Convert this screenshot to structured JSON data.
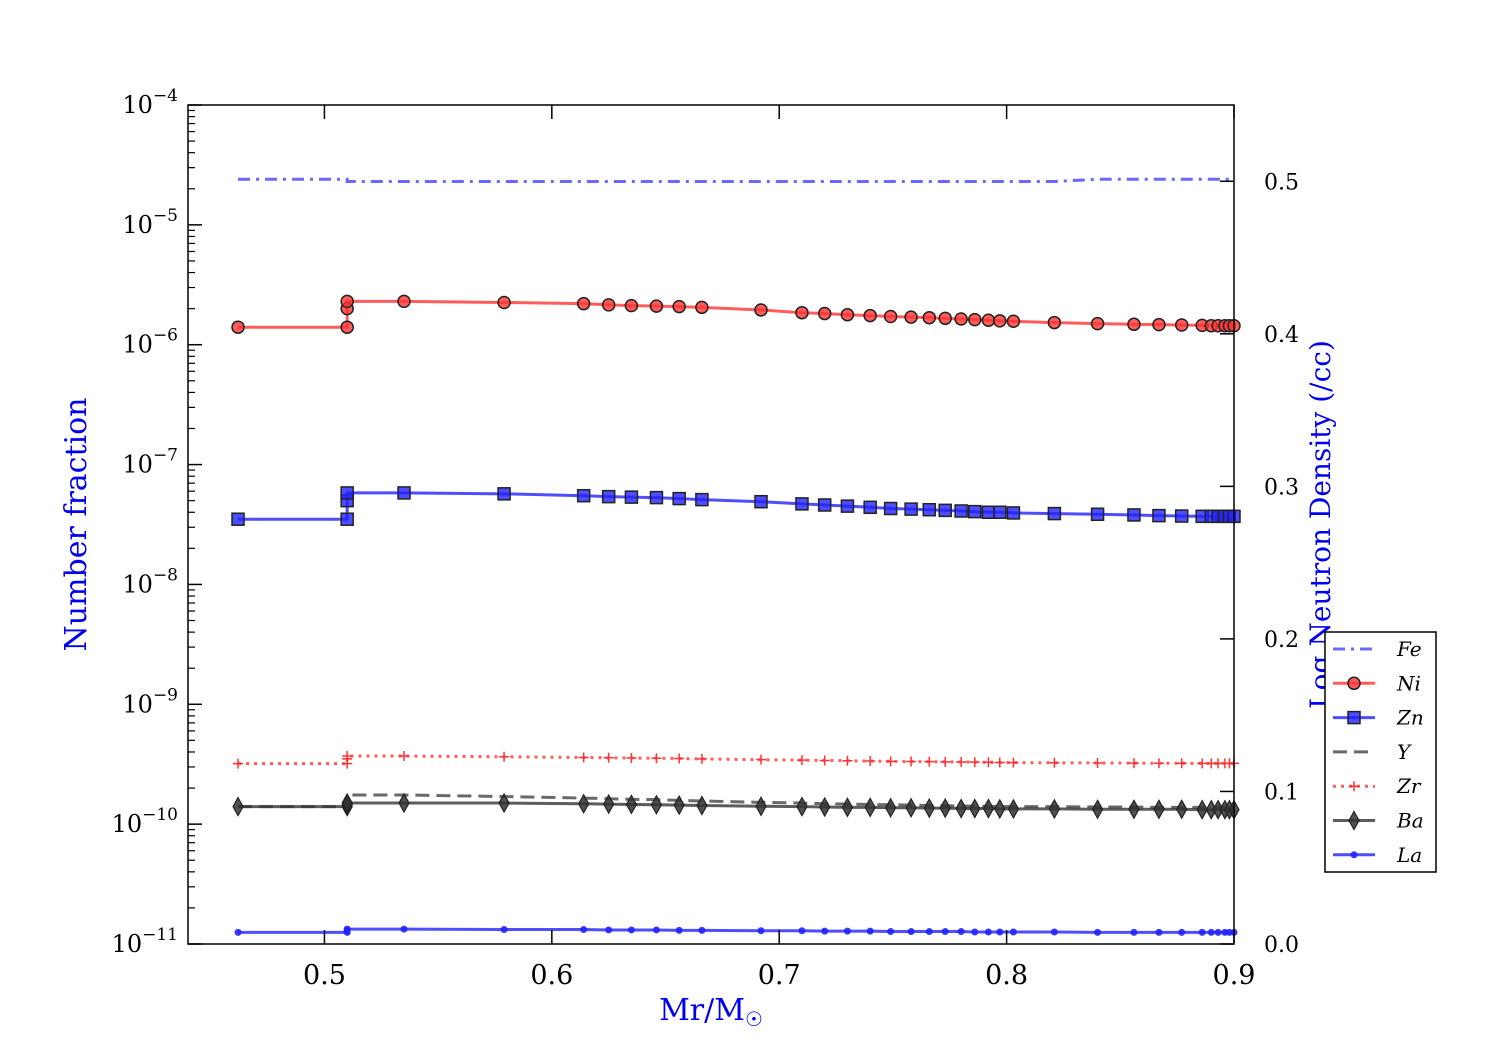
{
  "chart_data": {
    "type": "line",
    "x_axis": {
      "label": "Mr/M",
      "label_sub": "☉",
      "range": [
        0.44,
        0.9
      ],
      "ticks": [
        0.5,
        0.6,
        0.7,
        0.8,
        0.9
      ],
      "tick_labels": [
        "0.5",
        "0.6",
        "0.7",
        "0.8",
        "0.9"
      ]
    },
    "y_axis_left": {
      "label": "Number fraction",
      "scale": "log",
      "range": [
        1e-11,
        0.0001
      ],
      "tick_bases": [
        "10",
        "10",
        "10",
        "10",
        "10",
        "10",
        "10",
        "10"
      ],
      "tick_exps": [
        "−11",
        "−10",
        "−9",
        "−8",
        "−7",
        "−6",
        "−5",
        "−4"
      ]
    },
    "y_axis_right": {
      "label": "Log Neutron Density (/cc)",
      "scale": "linear",
      "range": [
        0.0,
        0.55
      ],
      "ticks": [
        0.0,
        0.1,
        0.2,
        0.3,
        0.4,
        0.5
      ],
      "tick_labels": [
        "0.0",
        "0.1",
        "0.2",
        "0.3",
        "0.4",
        "0.5"
      ]
    },
    "x_points": [
      0.462,
      0.51,
      0.51,
      0.51,
      0.535,
      0.579,
      0.614,
      0.625,
      0.635,
      0.646,
      0.656,
      0.666,
      0.692,
      0.71,
      0.72,
      0.73,
      0.74,
      0.749,
      0.758,
      0.766,
      0.773,
      0.78,
      0.786,
      0.792,
      0.797,
      0.803,
      0.821,
      0.84,
      0.856,
      0.867,
      0.877,
      0.886,
      0.89,
      0.893,
      0.896,
      0.898,
      0.9
    ],
    "series": [
      {
        "name": "Fe",
        "color": "#4444ff",
        "linestyle": "dashdot",
        "marker": "none",
        "values": [
          2.4e-05,
          2.4e-05,
          2.3e-05,
          2.3e-05,
          2.3e-05,
          2.3e-05,
          2.3e-05,
          2.3e-05,
          2.3e-05,
          2.3e-05,
          2.3e-05,
          2.3e-05,
          2.3e-05,
          2.3e-05,
          2.3e-05,
          2.3e-05,
          2.3e-05,
          2.3e-05,
          2.3e-05,
          2.3e-05,
          2.3e-05,
          2.3e-05,
          2.3e-05,
          2.3e-05,
          2.3e-05,
          2.3e-05,
          2.3e-05,
          2.4e-05,
          2.4e-05,
          2.4e-05,
          2.4e-05,
          2.4e-05,
          2.4e-05,
          2.4e-05,
          2.4e-05,
          2.4e-05,
          2.4e-05
        ]
      },
      {
        "name": "Ni",
        "color": "#ff3333",
        "linestyle": "solid",
        "marker": "circle",
        "values": [
          1.4e-06,
          1.4e-06,
          2e-06,
          2.3e-06,
          2.3e-06,
          2.25e-06,
          2.2e-06,
          2.15e-06,
          2.12e-06,
          2.1e-06,
          2.08e-06,
          2.05e-06,
          1.95e-06,
          1.85e-06,
          1.82e-06,
          1.78e-06,
          1.75e-06,
          1.72e-06,
          1.7e-06,
          1.68e-06,
          1.66e-06,
          1.64e-06,
          1.62e-06,
          1.6e-06,
          1.58e-06,
          1.57e-06,
          1.53e-06,
          1.5e-06,
          1.48e-06,
          1.47e-06,
          1.46e-06,
          1.45e-06,
          1.44e-06,
          1.44e-06,
          1.44e-06,
          1.44e-06,
          1.44e-06
        ]
      },
      {
        "name": "Zn",
        "color": "#2222ff",
        "linestyle": "solid",
        "marker": "square",
        "values": [
          3.5e-08,
          3.5e-08,
          5e-08,
          5.8e-08,
          5.8e-08,
          5.7e-08,
          5.5e-08,
          5.4e-08,
          5.35e-08,
          5.3e-08,
          5.2e-08,
          5.1e-08,
          4.9e-08,
          4.7e-08,
          4.6e-08,
          4.5e-08,
          4.4e-08,
          4.3e-08,
          4.25e-08,
          4.2e-08,
          4.15e-08,
          4.1e-08,
          4.05e-08,
          4e-08,
          4e-08,
          3.95e-08,
          3.9e-08,
          3.85e-08,
          3.8e-08,
          3.75e-08,
          3.72e-08,
          3.7e-08,
          3.7e-08,
          3.7e-08,
          3.7e-08,
          3.7e-08,
          3.7e-08
        ]
      },
      {
        "name": "Y",
        "color": "#444444",
        "linestyle": "dashed",
        "marker": "none",
        "values": [
          1.4e-10,
          1.4e-10,
          1.7e-10,
          1.75e-10,
          1.75e-10,
          1.7e-10,
          1.65e-10,
          1.63e-10,
          1.61e-10,
          1.6e-10,
          1.58e-10,
          1.56e-10,
          1.52e-10,
          1.5e-10,
          1.48e-10,
          1.47e-10,
          1.46e-10,
          1.45e-10,
          1.44e-10,
          1.43e-10,
          1.42e-10,
          1.42e-10,
          1.41e-10,
          1.41e-10,
          1.4e-10,
          1.4e-10,
          1.4e-10,
          1.39e-10,
          1.39e-10,
          1.38e-10,
          1.38e-10,
          1.38e-10,
          1.38e-10,
          1.38e-10,
          1.38e-10,
          1.38e-10,
          1.38e-10
        ]
      },
      {
        "name": "Zr",
        "color": "#ff3333",
        "linestyle": "dotted",
        "marker": "plus",
        "values": [
          3.2e-10,
          3.2e-10,
          3.5e-10,
          3.7e-10,
          3.7e-10,
          3.65e-10,
          3.6e-10,
          3.58e-10,
          3.56e-10,
          3.55e-10,
          3.53e-10,
          3.5e-10,
          3.45e-10,
          3.42e-10,
          3.4e-10,
          3.38e-10,
          3.36e-10,
          3.34e-10,
          3.33e-10,
          3.32e-10,
          3.31e-10,
          3.3e-10,
          3.29e-10,
          3.28e-10,
          3.27e-10,
          3.26e-10,
          3.25e-10,
          3.24e-10,
          3.23e-10,
          3.22e-10,
          3.22e-10,
          3.21e-10,
          3.21e-10,
          3.21e-10,
          3.21e-10,
          3.21e-10,
          3.21e-10
        ]
      },
      {
        "name": "Ba",
        "color": "#333333",
        "linestyle": "solid",
        "marker": "diamond",
        "values": [
          1.4e-10,
          1.4e-10,
          1.45e-10,
          1.5e-10,
          1.5e-10,
          1.5e-10,
          1.48e-10,
          1.47e-10,
          1.46e-10,
          1.45e-10,
          1.44e-10,
          1.43e-10,
          1.41e-10,
          1.4e-10,
          1.39e-10,
          1.38e-10,
          1.38e-10,
          1.37e-10,
          1.37e-10,
          1.36e-10,
          1.36e-10,
          1.35e-10,
          1.35e-10,
          1.35e-10,
          1.34e-10,
          1.34e-10,
          1.34e-10,
          1.33e-10,
          1.33e-10,
          1.33e-10,
          1.33e-10,
          1.32e-10,
          1.32e-10,
          1.32e-10,
          1.32e-10,
          1.32e-10,
          1.32e-10
        ]
      },
      {
        "name": "La",
        "color": "#2222ff",
        "linestyle": "solid",
        "marker": "dot",
        "values": [
          1.25e-11,
          1.25e-11,
          1.3e-11,
          1.33e-11,
          1.33e-11,
          1.32e-11,
          1.32e-11,
          1.31e-11,
          1.31e-11,
          1.31e-11,
          1.3e-11,
          1.3e-11,
          1.29e-11,
          1.29e-11,
          1.28e-11,
          1.28e-11,
          1.28e-11,
          1.27e-11,
          1.27e-11,
          1.27e-11,
          1.27e-11,
          1.27e-11,
          1.26e-11,
          1.26e-11,
          1.26e-11,
          1.26e-11,
          1.26e-11,
          1.25e-11,
          1.25e-11,
          1.25e-11,
          1.25e-11,
          1.25e-11,
          1.25e-11,
          1.25e-11,
          1.25e-11,
          1.25e-11,
          1.25e-11
        ]
      }
    ],
    "legend_position": "right, outside lower",
    "grid": false,
    "colors": {
      "axis_label": "#0000ee",
      "axis": "#000000"
    }
  }
}
